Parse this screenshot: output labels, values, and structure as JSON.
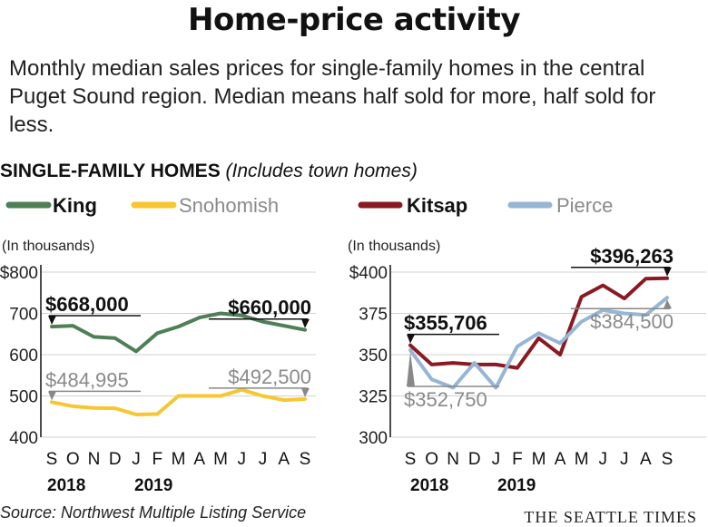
{
  "title": "Home-price activity",
  "subtitle": "Monthly median sales prices for single-family homes in the central Puget Sound region. Median means half sold for more, half sold for less.",
  "section": {
    "title": "SINGLE-FAMILY HOMES",
    "note": "(Includes town homes)"
  },
  "source": "Source: Northwest Multiple Listing Service",
  "brand": "THE SEATTLE TIMES",
  "chart_data": [
    {
      "type": "line",
      "ylabel": "(In thousands)",
      "ylim": [
        400,
        800
      ],
      "yticks": [
        400,
        500,
        600,
        700,
        800
      ],
      "ytick_labels": [
        "400",
        "500",
        "600",
        "700",
        "$800"
      ],
      "categories": [
        "S",
        "O",
        "N",
        "D",
        "J",
        "F",
        "M",
        "A",
        "M",
        "J",
        "J",
        "A",
        "S"
      ],
      "years": [
        "2018",
        "2019"
      ],
      "series": [
        {
          "name": "King",
          "color": "#4f7f57",
          "values": [
            668,
            670,
            643,
            640,
            608,
            652,
            668,
            690,
            700,
            695,
            680,
            670,
            660
          ]
        },
        {
          "name": "Snohomish",
          "color": "#f7c631",
          "values": [
            484.995,
            475,
            471,
            470,
            455,
            456,
            500,
            500,
            500,
            515,
            500,
            490,
            492.5
          ]
        }
      ],
      "annotations": [
        {
          "label": "$668,000",
          "series": 0,
          "index": 0
        },
        {
          "label": "$660,000",
          "series": 0,
          "index": 12
        },
        {
          "label": "$484,995",
          "series": 1,
          "index": 0
        },
        {
          "label": "$492,500",
          "series": 1,
          "index": 12
        }
      ]
    },
    {
      "type": "line",
      "ylabel": "(In thousands)",
      "ylim": [
        300,
        400
      ],
      "yticks": [
        300,
        325,
        350,
        375,
        400
      ],
      "ytick_labels": [
        "300",
        "325",
        "350",
        "375",
        "$400"
      ],
      "categories": [
        "S",
        "O",
        "N",
        "D",
        "J",
        "F",
        "M",
        "A",
        "M",
        "J",
        "J",
        "A",
        "S"
      ],
      "years": [
        "2018",
        "2019"
      ],
      "series": [
        {
          "name": "Kitsap",
          "color": "#8a1a22",
          "values": [
            355.706,
            344,
            345,
            344,
            344,
            342,
            360,
            350,
            385,
            392,
            384,
            396,
            396.263
          ]
        },
        {
          "name": "Pierce",
          "color": "#97b6d5",
          "values": [
            352.75,
            335,
            330,
            345,
            330,
            355,
            363,
            357,
            370,
            377,
            375,
            374,
            384.5
          ]
        }
      ],
      "annotations": [
        {
          "label": "$355,706",
          "series": 0,
          "index": 0
        },
        {
          "label": "$396,263",
          "series": 0,
          "index": 12
        },
        {
          "label": "$352,750",
          "series": 1,
          "index": 0
        },
        {
          "label": "$384,500",
          "series": 1,
          "index": 12
        }
      ]
    }
  ]
}
